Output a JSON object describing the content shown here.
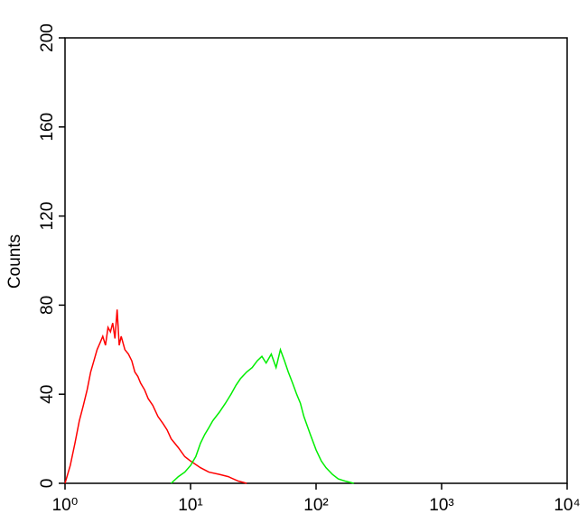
{
  "chart_data": {
    "type": "line",
    "ylabel": "Counts",
    "log_x": true,
    "xlim": [
      1,
      10000
    ],
    "xticks": [
      {
        "value": 1,
        "label": "10⁰"
      },
      {
        "value": 10,
        "label": "10¹"
      },
      {
        "value": 100,
        "label": "10²"
      },
      {
        "value": 1000,
        "label": "10³"
      },
      {
        "value": 10000,
        "label": "10⁴"
      }
    ],
    "ylim": [
      0,
      200
    ],
    "yticks": [
      0,
      40,
      80,
      120,
      160,
      200
    ],
    "series": [
      {
        "color": "#ff0000",
        "x": [
          1.0,
          1.1,
          1.2,
          1.3,
          1.4,
          1.5,
          1.6,
          1.7,
          1.8,
          1.9,
          2.0,
          2.1,
          2.2,
          2.3,
          2.4,
          2.5,
          2.6,
          2.7,
          2.8,
          3.0,
          3.2,
          3.4,
          3.6,
          3.8,
          4.0,
          4.3,
          4.6,
          5.0,
          5.5,
          6.0,
          6.5,
          7.0,
          8.0,
          9.0,
          10,
          12,
          14,
          17,
          20,
          24,
          28
        ],
        "values": [
          0,
          8,
          18,
          28,
          35,
          42,
          50,
          55,
          60,
          63,
          66,
          62,
          70,
          68,
          72,
          65,
          78,
          62,
          66,
          60,
          58,
          55,
          50,
          48,
          45,
          42,
          38,
          35,
          30,
          27,
          24,
          20,
          16,
          12,
          10,
          7,
          5,
          4,
          3,
          1,
          0
        ]
      },
      {
        "color": "#00ee00",
        "x": [
          7,
          8,
          9,
          10,
          11,
          12,
          13,
          14,
          15,
          17,
          19,
          21,
          23,
          25,
          28,
          31,
          34,
          37,
          40,
          44,
          48,
          52,
          56,
          60,
          65,
          70,
          75,
          80,
          90,
          100,
          110,
          120,
          135,
          150,
          170,
          200
        ],
        "values": [
          0,
          3,
          5,
          8,
          12,
          18,
          22,
          25,
          28,
          32,
          36,
          40,
          44,
          47,
          50,
          52,
          55,
          57,
          54,
          58,
          52,
          60,
          55,
          50,
          45,
          40,
          36,
          30,
          22,
          15,
          10,
          7,
          4,
          2,
          1,
          0
        ]
      }
    ]
  }
}
